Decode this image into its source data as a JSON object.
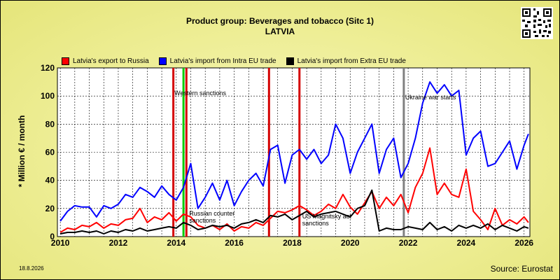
{
  "header": {
    "title": "Product group: Beverages and tobacco (Sitc 1)",
    "subtitle": "LATVIA"
  },
  "footer": {
    "date": "18.8.2026",
    "source": "Source: Eurostat"
  },
  "colors": {
    "export_russia": "#ff0000",
    "import_intra_eu": "#0000ff",
    "import_extra_eu": "#000000",
    "event_red": "#d40000",
    "event_green": "#00cc00",
    "event_grey": "#808080",
    "plot_bg": "#ffffff",
    "frame_bg": "#eeee96"
  },
  "icons": {
    "qr": "qr-code-icon"
  },
  "chart_data": {
    "type": "line",
    "title": "Product group: Beverages and tobacco (Sitc 1)",
    "subtitle": "LATVIA",
    "xlabel": "",
    "ylabel": "* Million € / month",
    "xlim": [
      2009.9,
      2026.2
    ],
    "ylim": [
      0,
      120
    ],
    "x_ticks": [
      2010,
      2012,
      2014,
      2016,
      2018,
      2020,
      2022,
      2024,
      2026
    ],
    "y_ticks": [
      0,
      20,
      40,
      60,
      80,
      100,
      120
    ],
    "grid": true,
    "legend_position": "top",
    "series": [
      {
        "name": "Latvia's export to Russia",
        "color": "#ff0000",
        "points": [
          [
            2010.0,
            3
          ],
          [
            2010.25,
            6
          ],
          [
            2010.5,
            5
          ],
          [
            2010.75,
            8
          ],
          [
            2011.0,
            7
          ],
          [
            2011.25,
            10
          ],
          [
            2011.5,
            6
          ],
          [
            2011.75,
            9
          ],
          [
            2012.0,
            8
          ],
          [
            2012.25,
            12
          ],
          [
            2012.5,
            13
          ],
          [
            2012.75,
            20
          ],
          [
            2013.0,
            10
          ],
          [
            2013.25,
            14
          ],
          [
            2013.5,
            12
          ],
          [
            2013.75,
            17
          ],
          [
            2014.0,
            11
          ],
          [
            2014.25,
            16
          ],
          [
            2014.5,
            14
          ],
          [
            2014.75,
            8
          ],
          [
            2015.0,
            6
          ],
          [
            2015.25,
            8
          ],
          [
            2015.5,
            5
          ],
          [
            2015.75,
            9
          ],
          [
            2016.0,
            4
          ],
          [
            2016.25,
            7
          ],
          [
            2016.5,
            6
          ],
          [
            2016.75,
            10
          ],
          [
            2017.0,
            8
          ],
          [
            2017.25,
            13
          ],
          [
            2017.5,
            18
          ],
          [
            2017.75,
            17
          ],
          [
            2018.0,
            19
          ],
          [
            2018.25,
            22
          ],
          [
            2018.5,
            19
          ],
          [
            2018.75,
            15
          ],
          [
            2019.0,
            18
          ],
          [
            2019.25,
            23
          ],
          [
            2019.5,
            20
          ],
          [
            2019.75,
            30
          ],
          [
            2020.0,
            21
          ],
          [
            2020.25,
            16
          ],
          [
            2020.5,
            24
          ],
          [
            2020.75,
            32
          ],
          [
            2021.0,
            20
          ],
          [
            2021.25,
            28
          ],
          [
            2021.5,
            22
          ],
          [
            2021.75,
            30
          ],
          [
            2022.0,
            17
          ],
          [
            2022.25,
            35
          ],
          [
            2022.5,
            45
          ],
          [
            2022.75,
            63
          ],
          [
            2023.0,
            30
          ],
          [
            2023.25,
            38
          ],
          [
            2023.5,
            30
          ],
          [
            2023.75,
            28
          ],
          [
            2024.0,
            48
          ],
          [
            2024.25,
            18
          ],
          [
            2024.5,
            12
          ],
          [
            2024.75,
            5
          ],
          [
            2025.0,
            20
          ],
          [
            2025.25,
            8
          ],
          [
            2025.5,
            12
          ],
          [
            2025.75,
            9
          ],
          [
            2026.0,
            14
          ],
          [
            2026.15,
            10
          ]
        ]
      },
      {
        "name": "Latvia's import from Intra EU trade",
        "color": "#0000ff",
        "points": [
          [
            2010.0,
            11
          ],
          [
            2010.25,
            18
          ],
          [
            2010.5,
            22
          ],
          [
            2010.75,
            21
          ],
          [
            2011.0,
            21
          ],
          [
            2011.25,
            14
          ],
          [
            2011.5,
            22
          ],
          [
            2011.75,
            20
          ],
          [
            2012.0,
            23
          ],
          [
            2012.25,
            30
          ],
          [
            2012.5,
            28
          ],
          [
            2012.75,
            35
          ],
          [
            2013.0,
            32
          ],
          [
            2013.25,
            28
          ],
          [
            2013.5,
            36
          ],
          [
            2013.75,
            30
          ],
          [
            2014.0,
            26
          ],
          [
            2014.25,
            35
          ],
          [
            2014.5,
            52
          ],
          [
            2014.75,
            20
          ],
          [
            2015.0,
            28
          ],
          [
            2015.25,
            38
          ],
          [
            2015.5,
            26
          ],
          [
            2015.75,
            40
          ],
          [
            2016.0,
            22
          ],
          [
            2016.25,
            32
          ],
          [
            2016.5,
            40
          ],
          [
            2016.75,
            45
          ],
          [
            2017.0,
            36
          ],
          [
            2017.25,
            62
          ],
          [
            2017.5,
            65
          ],
          [
            2017.75,
            38
          ],
          [
            2018.0,
            58
          ],
          [
            2018.25,
            62
          ],
          [
            2018.5,
            55
          ],
          [
            2018.75,
            62
          ],
          [
            2019.0,
            52
          ],
          [
            2019.25,
            58
          ],
          [
            2019.5,
            80
          ],
          [
            2019.75,
            70
          ],
          [
            2020.0,
            45
          ],
          [
            2020.25,
            60
          ],
          [
            2020.5,
            70
          ],
          [
            2020.75,
            80
          ],
          [
            2021.0,
            45
          ],
          [
            2021.25,
            62
          ],
          [
            2021.5,
            70
          ],
          [
            2021.75,
            42
          ],
          [
            2022.0,
            52
          ],
          [
            2022.25,
            70
          ],
          [
            2022.5,
            95
          ],
          [
            2022.75,
            110
          ],
          [
            2023.0,
            102
          ],
          [
            2023.25,
            108
          ],
          [
            2023.5,
            100
          ],
          [
            2023.75,
            104
          ],
          [
            2024.0,
            58
          ],
          [
            2024.25,
            70
          ],
          [
            2024.5,
            75
          ],
          [
            2024.75,
            50
          ],
          [
            2025.0,
            52
          ],
          [
            2025.25,
            60
          ],
          [
            2025.5,
            68
          ],
          [
            2025.75,
            48
          ],
          [
            2026.0,
            65
          ],
          [
            2026.15,
            73
          ]
        ]
      },
      {
        "name": "Latvia's import from Extra EU trade",
        "color": "#000000",
        "points": [
          [
            2010.0,
            2
          ],
          [
            2010.25,
            3
          ],
          [
            2010.5,
            3
          ],
          [
            2010.75,
            4
          ],
          [
            2011.0,
            3
          ],
          [
            2011.25,
            4
          ],
          [
            2011.5,
            2
          ],
          [
            2011.75,
            4
          ],
          [
            2012.0,
            3
          ],
          [
            2012.25,
            5
          ],
          [
            2012.5,
            4
          ],
          [
            2012.75,
            6
          ],
          [
            2013.0,
            4
          ],
          [
            2013.25,
            5
          ],
          [
            2013.5,
            6
          ],
          [
            2013.75,
            7
          ],
          [
            2014.0,
            6
          ],
          [
            2014.25,
            10
          ],
          [
            2014.5,
            8
          ],
          [
            2014.75,
            5
          ],
          [
            2015.0,
            6
          ],
          [
            2015.25,
            8
          ],
          [
            2015.5,
            7
          ],
          [
            2015.75,
            8
          ],
          [
            2016.0,
            6
          ],
          [
            2016.25,
            9
          ],
          [
            2016.5,
            10
          ],
          [
            2016.75,
            12
          ],
          [
            2017.0,
            10
          ],
          [
            2017.25,
            15
          ],
          [
            2017.5,
            14
          ],
          [
            2017.75,
            16
          ],
          [
            2018.0,
            12
          ],
          [
            2018.25,
            15
          ],
          [
            2018.5,
            18
          ],
          [
            2018.75,
            14
          ],
          [
            2019.0,
            16
          ],
          [
            2019.25,
            17
          ],
          [
            2019.5,
            18
          ],
          [
            2019.75,
            16
          ],
          [
            2020.0,
            14
          ],
          [
            2020.25,
            20
          ],
          [
            2020.5,
            22
          ],
          [
            2020.75,
            33
          ],
          [
            2021.0,
            4
          ],
          [
            2021.25,
            6
          ],
          [
            2021.5,
            5
          ],
          [
            2021.75,
            5
          ],
          [
            2022.0,
            7
          ],
          [
            2022.25,
            6
          ],
          [
            2022.5,
            5
          ],
          [
            2022.75,
            10
          ],
          [
            2023.0,
            5
          ],
          [
            2023.25,
            7
          ],
          [
            2023.5,
            4
          ],
          [
            2023.75,
            8
          ],
          [
            2024.0,
            6
          ],
          [
            2024.25,
            8
          ],
          [
            2024.5,
            6
          ],
          [
            2024.75,
            9
          ],
          [
            2025.0,
            5
          ],
          [
            2025.25,
            8
          ],
          [
            2025.5,
            6
          ],
          [
            2025.75,
            4
          ],
          [
            2026.0,
            7
          ],
          [
            2026.15,
            6
          ]
        ]
      }
    ],
    "events": [
      {
        "x": 2013.9,
        "color": "#d40000",
        "label": ""
      },
      {
        "x": 2014.25,
        "color": "#00cc00",
        "label": "Western sanctions"
      },
      {
        "x": 2014.35,
        "color": "#d40000",
        "label": "Russian counter sanctions"
      },
      {
        "x": 2017.2,
        "color": "#d40000",
        "label": ""
      },
      {
        "x": 2018.25,
        "color": "#d40000",
        "label": "US Magnitsky act sanctions"
      },
      {
        "x": 2021.85,
        "color": "#808080",
        "label": "Ukraine war starts"
      }
    ]
  }
}
